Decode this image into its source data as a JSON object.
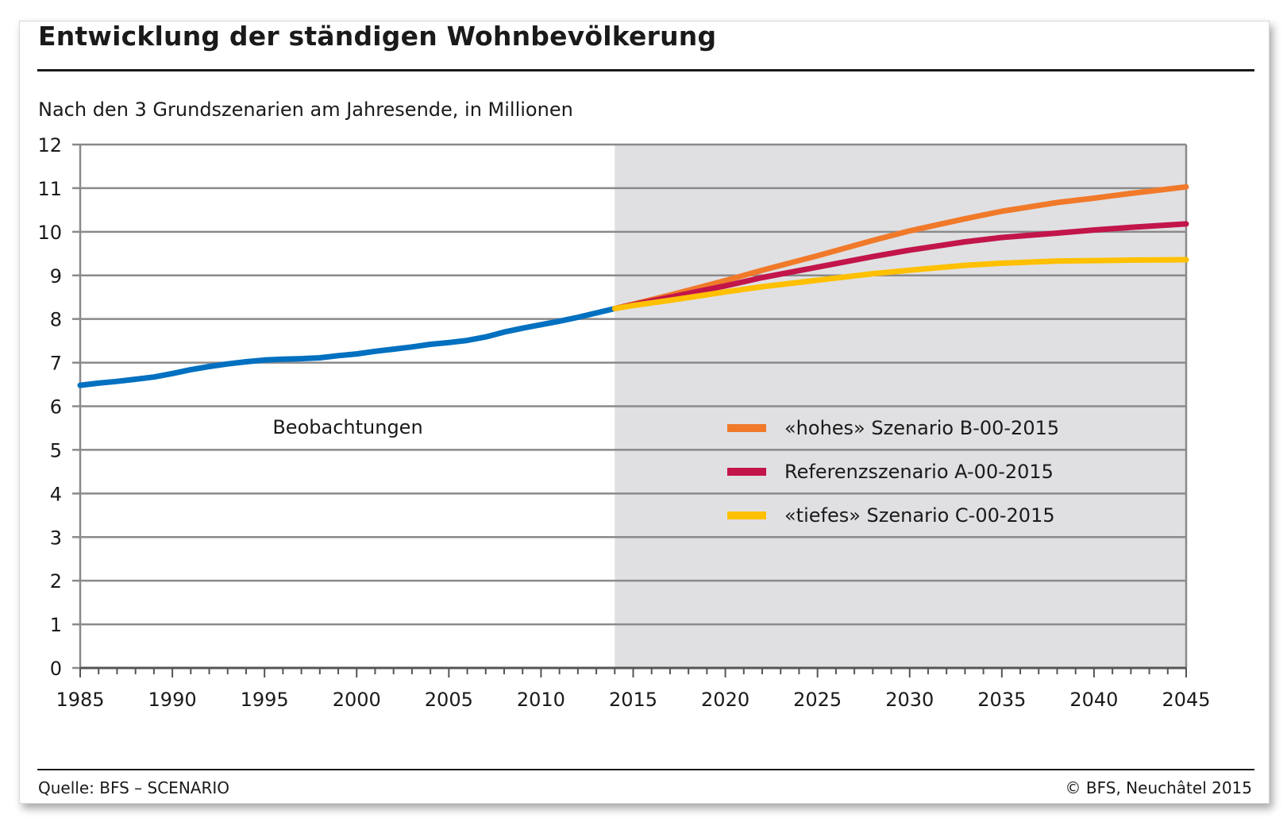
{
  "title": "Entwicklung der ständigen Wohnbevölkerung",
  "subtitle": "Nach den 3 Grundszenarien am Jahresende, in Millionen",
  "footer": {
    "source": "Quelle: BFS – SCENARIO",
    "copyright": "© BFS, Neuchâtel 2015"
  },
  "colors": {
    "observed": "#0070c0",
    "high": "#f07a2a",
    "reference": "#c2154a",
    "low": "#ffc000",
    "forecast_bg": "#e0e0e3",
    "grid": "#8a8a8a"
  },
  "chart_data": {
    "type": "line",
    "title": "Entwicklung der ständigen Wohnbevölkerung",
    "subtitle": "Nach den 3 Grundszenarien am Jahresende, in Millionen",
    "xlabel": "",
    "ylabel": "",
    "xlim": [
      1985,
      2045
    ],
    "ylim": [
      0,
      12
    ],
    "xticks": [
      1985,
      1990,
      1995,
      2000,
      2005,
      2010,
      2015,
      2020,
      2025,
      2030,
      2035,
      2040,
      2045
    ],
    "yticks": [
      0,
      1,
      2,
      3,
      4,
      5,
      6,
      7,
      8,
      9,
      10,
      11,
      12
    ],
    "grid": "horizontal",
    "forecast_start": 2014,
    "observation_label": "Beobachtungen",
    "legend_position": "inside-right",
    "series": [
      {
        "key": "observed",
        "x": [
          1985,
          1986,
          1987,
          1988,
          1989,
          1990,
          1991,
          1992,
          1993,
          1994,
          1995,
          1996,
          1997,
          1998,
          1999,
          2000,
          2001,
          2002,
          2003,
          2004,
          2005,
          2006,
          2007,
          2008,
          2009,
          2010,
          2011,
          2012,
          2013,
          2014
        ],
        "values": [
          6.48,
          6.53,
          6.57,
          6.62,
          6.67,
          6.75,
          6.84,
          6.91,
          6.97,
          7.02,
          7.06,
          7.08,
          7.09,
          7.11,
          7.16,
          7.2,
          7.26,
          7.31,
          7.36,
          7.42,
          7.46,
          7.51,
          7.59,
          7.7,
          7.79,
          7.87,
          7.95,
          8.04,
          8.14,
          8.24
        ]
      },
      {
        "key": "high",
        "name": "«hohes» Szenario B-00-2015",
        "x": [
          2014,
          2015,
          2017,
          2020,
          2022,
          2025,
          2028,
          2030,
          2033,
          2035,
          2038,
          2040,
          2042,
          2045
        ],
        "values": [
          8.24,
          8.34,
          8.55,
          8.88,
          9.12,
          9.45,
          9.8,
          10.02,
          10.3,
          10.47,
          10.67,
          10.77,
          10.88,
          11.03
        ]
      },
      {
        "key": "reference",
        "name": "Referenzszenario A-00-2015",
        "x": [
          2014,
          2015,
          2017,
          2020,
          2022,
          2025,
          2028,
          2030,
          2033,
          2035,
          2038,
          2040,
          2042,
          2045
        ],
        "values": [
          8.24,
          8.33,
          8.5,
          8.76,
          8.95,
          9.19,
          9.43,
          9.58,
          9.77,
          9.87,
          9.97,
          10.04,
          10.1,
          10.18
        ]
      },
      {
        "key": "low",
        "name": "«tiefes» Szenario C-00-2015",
        "x": [
          2014,
          2015,
          2017,
          2020,
          2022,
          2025,
          2028,
          2030,
          2033,
          2035,
          2038,
          2040,
          2042,
          2045
        ],
        "values": [
          8.24,
          8.31,
          8.43,
          8.62,
          8.74,
          8.89,
          9.04,
          9.12,
          9.23,
          9.28,
          9.33,
          9.34,
          9.35,
          9.36
        ]
      }
    ]
  }
}
